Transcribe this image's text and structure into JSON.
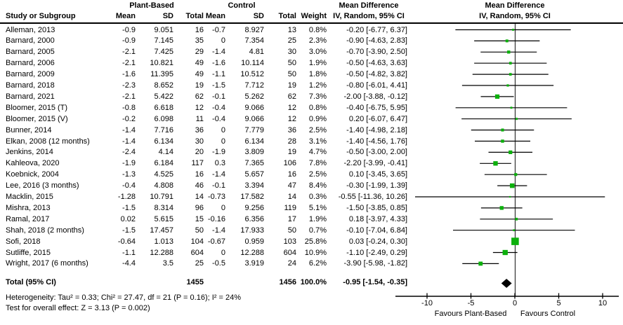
{
  "header": {
    "study_col": "Study or Subgroup",
    "group_plant": "Plant-Based",
    "group_control": "Control",
    "mean": "Mean",
    "sd": "SD",
    "total": "Total",
    "weight": "Weight",
    "md_title": "Mean Difference",
    "iv_sub": "IV, Random, 95% CI"
  },
  "chart_data": {
    "type": "forest",
    "effect_measure": "Mean Difference",
    "model": "IV, Random, 95% CI",
    "marker_color": "#0CB00C",
    "diamond_color": "#000000",
    "axis": {
      "ticks": [
        -10,
        -5,
        0,
        5,
        10
      ],
      "xlim": [
        -13.6,
        11.8
      ],
      "left_label": "Favours Plant-Based",
      "right_label": "Favours Control"
    },
    "studies": [
      {
        "name": "Alleman, 2013",
        "pb_mean": "-0.9",
        "pb_sd": "9.051",
        "pb_total": "16",
        "c_mean": "-0.7",
        "c_sd": "8.927",
        "c_total": "13",
        "weight": "0.8%",
        "ci_text": "-0.20 [-6.77, 6.37]",
        "md": -0.2,
        "lo": -6.77,
        "hi": 6.37,
        "w": 0.8
      },
      {
        "name": "Barnard, 2000",
        "pb_mean": "-0.9",
        "pb_sd": "7.145",
        "pb_total": "35",
        "c_mean": "0",
        "c_sd": "7.354",
        "c_total": "25",
        "weight": "2.3%",
        "ci_text": "-0.90 [-4.63, 2.83]",
        "md": -0.9,
        "lo": -4.63,
        "hi": 2.83,
        "w": 2.3
      },
      {
        "name": "Barnard, 2005",
        "pb_mean": "-2.1",
        "pb_sd": "7.425",
        "pb_total": "29",
        "c_mean": "-1.4",
        "c_sd": "4.81",
        "c_total": "30",
        "weight": "3.0%",
        "ci_text": "-0.70 [-3.90, 2.50]",
        "md": -0.7,
        "lo": -3.9,
        "hi": 2.5,
        "w": 3.0
      },
      {
        "name": "Barnard, 2006",
        "pb_mean": "-2.1",
        "pb_sd": "10.821",
        "pb_total": "49",
        "c_mean": "-1.6",
        "c_sd": "10.114",
        "c_total": "50",
        "weight": "1.9%",
        "ci_text": "-0.50 [-4.63, 3.63]",
        "md": -0.5,
        "lo": -4.63,
        "hi": 3.63,
        "w": 1.9
      },
      {
        "name": "Barnard, 2009",
        "pb_mean": "-1.6",
        "pb_sd": "11.395",
        "pb_total": "49",
        "c_mean": "-1.1",
        "c_sd": "10.512",
        "c_total": "50",
        "weight": "1.8%",
        "ci_text": "-0.50 [-4.82, 3.82]",
        "md": -0.5,
        "lo": -4.82,
        "hi": 3.82,
        "w": 1.8
      },
      {
        "name": "Barnard, 2018",
        "pb_mean": "-2.3",
        "pb_sd": "8.652",
        "pb_total": "19",
        "c_mean": "-1.5",
        "c_sd": "7.712",
        "c_total": "19",
        "weight": "1.2%",
        "ci_text": "-0.80 [-6.01, 4.41]",
        "md": -0.8,
        "lo": -6.01,
        "hi": 4.41,
        "w": 1.2
      },
      {
        "name": "Barnard, 2021",
        "pb_mean": "-2.1",
        "pb_sd": "5.422",
        "pb_total": "62",
        "c_mean": "-0.1",
        "c_sd": "5.262",
        "c_total": "62",
        "weight": "7.3%",
        "ci_text": "-2.00 [-3.88, -0.12]",
        "md": -2.0,
        "lo": -3.88,
        "hi": -0.12,
        "w": 7.3
      },
      {
        "name": "Bloomer, 2015 (T)",
        "pb_mean": "-0.8",
        "pb_sd": "6.618",
        "pb_total": "12",
        "c_mean": "-0.4",
        "c_sd": "9.066",
        "c_total": "12",
        "weight": "0.8%",
        "ci_text": "-0.40 [-6.75, 5.95]",
        "md": -0.4,
        "lo": -6.75,
        "hi": 5.95,
        "w": 0.8
      },
      {
        "name": "Bloomer, 2015 (V)",
        "pb_mean": "-0.2",
        "pb_sd": "6.098",
        "pb_total": "11",
        "c_mean": "-0.4",
        "c_sd": "9.066",
        "c_total": "12",
        "weight": "0.9%",
        "ci_text": "0.20 [-6.07, 6.47]",
        "md": 0.2,
        "lo": -6.07,
        "hi": 6.47,
        "w": 0.9
      },
      {
        "name": "Bunner, 2014",
        "pb_mean": "-1.4",
        "pb_sd": "7.716",
        "pb_total": "36",
        "c_mean": "0",
        "c_sd": "7.779",
        "c_total": "36",
        "weight": "2.5%",
        "ci_text": "-1.40 [-4.98, 2.18]",
        "md": -1.4,
        "lo": -4.98,
        "hi": 2.18,
        "w": 2.5
      },
      {
        "name": "Elkan, 2008 (12 months)",
        "pb_mean": "-1.4",
        "pb_sd": "6.134",
        "pb_total": "30",
        "c_mean": "0",
        "c_sd": "6.134",
        "c_total": "28",
        "weight": "3.1%",
        "ci_text": "-1.40 [-4.56, 1.76]",
        "md": -1.4,
        "lo": -4.56,
        "hi": 1.76,
        "w": 3.1
      },
      {
        "name": "Jenkins, 2014",
        "pb_mean": "-2.4",
        "pb_sd": "4.14",
        "pb_total": "20",
        "c_mean": "-1.9",
        "c_sd": "3.809",
        "c_total": "19",
        "weight": "4.7%",
        "ci_text": "-0.50 [-3.00, 2.00]",
        "md": -0.5,
        "lo": -3.0,
        "hi": 2.0,
        "w": 4.7
      },
      {
        "name": "Kahleova, 2020",
        "pb_mean": "-1.9",
        "pb_sd": "6.184",
        "pb_total": "117",
        "c_mean": "0.3",
        "c_sd": "7.365",
        "c_total": "106",
        "weight": "7.8%",
        "ci_text": "-2.20 [-3.99, -0.41]",
        "md": -2.2,
        "lo": -3.99,
        "hi": -0.41,
        "w": 7.8
      },
      {
        "name": "Koebnick, 2004",
        "pb_mean": "-1.3",
        "pb_sd": "4.525",
        "pb_total": "16",
        "c_mean": "-1.4",
        "c_sd": "5.657",
        "c_total": "16",
        "weight": "2.5%",
        "ci_text": "0.10 [-3.45, 3.65]",
        "md": 0.1,
        "lo": -3.45,
        "hi": 3.65,
        "w": 2.5
      },
      {
        "name": "Lee, 2016 (3 months)",
        "pb_mean": "-0.4",
        "pb_sd": "4.808",
        "pb_total": "46",
        "c_mean": "-0.1",
        "c_sd": "3.394",
        "c_total": "47",
        "weight": "8.4%",
        "ci_text": "-0.30 [-1.99, 1.39]",
        "md": -0.3,
        "lo": -1.99,
        "hi": 1.39,
        "w": 8.4
      },
      {
        "name": "Macklin, 2015",
        "pb_mean": "-1.28",
        "pb_sd": "10.791",
        "pb_total": "14",
        "c_mean": "-0.73",
        "c_sd": "17.582",
        "c_total": "14",
        "weight": "0.3%",
        "ci_text": "-0.55 [-11.36, 10.26]",
        "md": -0.55,
        "lo": -11.36,
        "hi": 10.26,
        "w": 0.3
      },
      {
        "name": "Mishra, 2013",
        "pb_mean": "-1.5",
        "pb_sd": "8.314",
        "pb_total": "96",
        "c_mean": "0",
        "c_sd": "9.256",
        "c_total": "119",
        "weight": "5.1%",
        "ci_text": "-1.50 [-3.85, 0.85]",
        "md": -1.5,
        "lo": -3.85,
        "hi": 0.85,
        "w": 5.1
      },
      {
        "name": "Ramal, 2017",
        "pb_mean": "0.02",
        "pb_sd": "5.615",
        "pb_total": "15",
        "c_mean": "-0.16",
        "c_sd": "6.356",
        "c_total": "17",
        "weight": "1.9%",
        "ci_text": "0.18 [-3.97, 4.33]",
        "md": 0.18,
        "lo": -3.97,
        "hi": 4.33,
        "w": 1.9
      },
      {
        "name": "Shah, 2018 (2 months)",
        "pb_mean": "-1.5",
        "pb_sd": "17.457",
        "pb_total": "50",
        "c_mean": "-1.4",
        "c_sd": "17.933",
        "c_total": "50",
        "weight": "0.7%",
        "ci_text": "-0.10 [-7.04, 6.84]",
        "md": -0.1,
        "lo": -7.04,
        "hi": 6.84,
        "w": 0.7
      },
      {
        "name": "Sofi, 2018",
        "pb_mean": "-0.64",
        "pb_sd": "1.013",
        "pb_total": "104",
        "c_mean": "-0.67",
        "c_sd": "0.959",
        "c_total": "103",
        "weight": "25.8%",
        "ci_text": "0.03 [-0.24, 0.30]",
        "md": 0.03,
        "lo": -0.24,
        "hi": 0.3,
        "w": 25.8
      },
      {
        "name": "Sutliffe, 2015",
        "pb_mean": "-1.1",
        "pb_sd": "12.288",
        "pb_total": "604",
        "c_mean": "0",
        "c_sd": "12.288",
        "c_total": "604",
        "weight": "10.9%",
        "ci_text": "-1.10 [-2.49, 0.29]",
        "md": -1.1,
        "lo": -2.49,
        "hi": 0.29,
        "w": 10.9
      },
      {
        "name": "Wright, 2017 (6 months)",
        "pb_mean": "-4.4",
        "pb_sd": "3.5",
        "pb_total": "25",
        "c_mean": "-0.5",
        "c_sd": "3.919",
        "c_total": "24",
        "weight": "6.2%",
        "ci_text": "-3.90 [-5.98, -1.82]",
        "md": -3.9,
        "lo": -5.98,
        "hi": -1.82,
        "w": 6.2
      }
    ],
    "total": {
      "label": "Total (95% CI)",
      "pb_total": "1455",
      "c_total": "1456",
      "weight": "100.0%",
      "ci_text": "-0.95 [-1.54, -0.35]",
      "md": -0.95,
      "lo": -1.54,
      "hi": -0.35
    },
    "heterogeneity": "Heterogeneity: Tau² = 0.33; Chi² = 27.47, df = 21 (P = 0.16); I² = 24%",
    "overall_effect": "Test for overall effect: Z = 3.13 (P = 0.002)"
  }
}
